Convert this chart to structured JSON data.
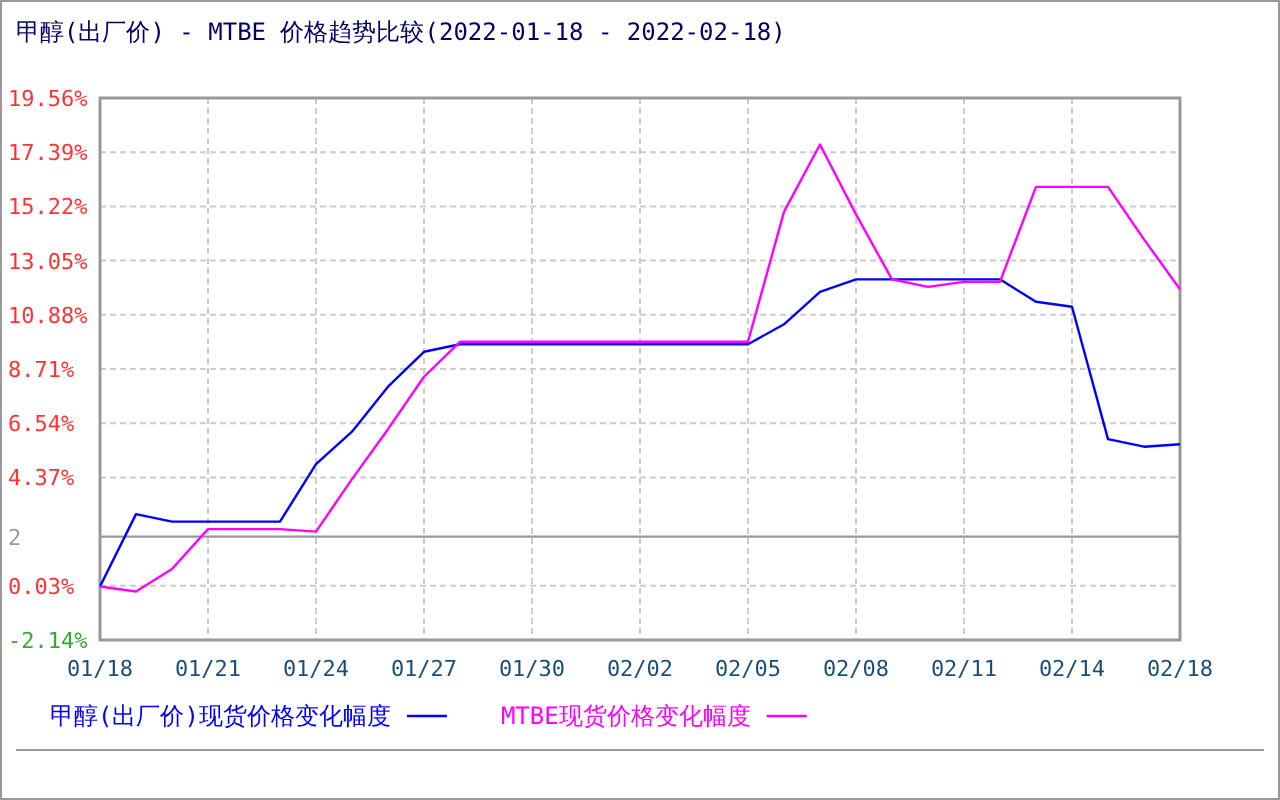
{
  "chart_data": {
    "type": "line",
    "title": "甲醇(出厂价) - MTBE 价格趋势比较(2022-01-18 - 2022-02-18)",
    "categories": [
      "01/18",
      null,
      null,
      "01/21",
      null,
      null,
      "01/24",
      null,
      null,
      "01/27",
      null,
      null,
      "01/30",
      null,
      null,
      "02/02",
      null,
      null,
      "02/05",
      null,
      null,
      "02/08",
      null,
      null,
      "02/11",
      null,
      null,
      "02/14",
      null,
      null,
      "02/18"
    ],
    "series": [
      {
        "name": "甲醇(出厂价)现货价格变化幅度",
        "color": "#0000ff",
        "values": [
          0,
          2.9,
          2.6,
          2.6,
          2.6,
          2.6,
          4.9,
          6.2,
          8,
          9.4,
          9.7,
          9.7,
          9.7,
          9.7,
          9.7,
          9.7,
          9.7,
          9.7,
          9.7,
          10.5,
          11.8,
          12.3,
          12.3,
          12.3,
          12.3,
          12.3,
          11.4,
          11.2,
          5.9,
          5.6,
          5.7
        ]
      },
      {
        "name": "MTBE现货价格变化幅度",
        "color": "#ff00ff",
        "values": [
          0,
          -0.2,
          0.7,
          2.3,
          2.3,
          2.3,
          2.2,
          4.3,
          6.3,
          8.4,
          9.8,
          9.8,
          9.8,
          9.8,
          9.8,
          9.8,
          9.8,
          9.8,
          9.8,
          15,
          17.7,
          14.9,
          12.3,
          12,
          12.2,
          12.2,
          16,
          16,
          16,
          13.9,
          11.9
        ]
      }
    ],
    "ylim": [
      -2.14,
      19.56
    ],
    "yticks": [
      {
        "value": -2.14,
        "label": "-2.14%"
      },
      {
        "value": 0.03,
        "label": "0.03%"
      },
      {
        "value": 4.37,
        "label": "4.37%"
      },
      {
        "value": 6.54,
        "label": "6.54%"
      },
      {
        "value": 8.71,
        "label": "8.71%"
      },
      {
        "value": 10.88,
        "label": "10.88%"
      },
      {
        "value": 13.05,
        "label": "13.05%"
      },
      {
        "value": 15.22,
        "label": "15.22%"
      },
      {
        "value": 17.39,
        "label": "17.39%"
      },
      {
        "value": 19.56,
        "label": "19.56%"
      }
    ],
    "ref_lines": [
      {
        "axis": "y",
        "value": 2,
        "label": "2",
        "color": "#999999"
      }
    ],
    "grid": true,
    "legend": "bottom",
    "marker": "none",
    "line_style": "solid"
  }
}
